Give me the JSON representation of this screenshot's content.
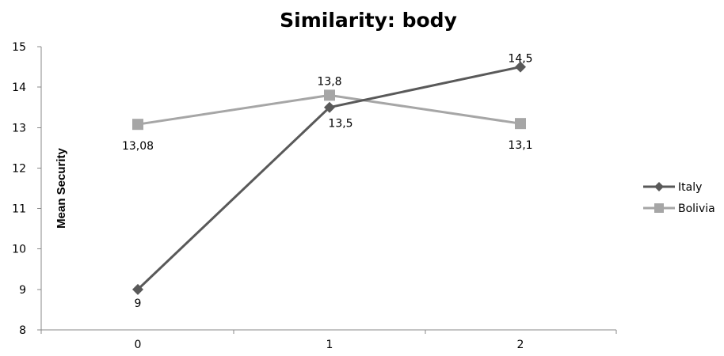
{
  "chart_data": {
    "type": "line",
    "title": "Similarity: body",
    "xlabel": "",
    "ylabel": "Mean Security",
    "categories": [
      "0",
      "1",
      "2"
    ],
    "ylim": [
      8,
      15
    ],
    "yticks": [
      "8",
      "9",
      "10",
      "11",
      "12",
      "13",
      "14",
      "15"
    ],
    "grid": false,
    "legend_position": "right",
    "series": [
      {
        "name": "Italy",
        "values": [
          9,
          13.5,
          14.5
        ],
        "labels": [
          "9",
          "13,5",
          "14,5"
        ],
        "color": "#595959",
        "marker": "diamond"
      },
      {
        "name": "Bolivia",
        "values": [
          13.08,
          13.8,
          13.1
        ],
        "labels": [
          "13,08",
          "13,8",
          "13,1"
        ],
        "color": "#a6a6a6",
        "marker": "square"
      }
    ]
  }
}
